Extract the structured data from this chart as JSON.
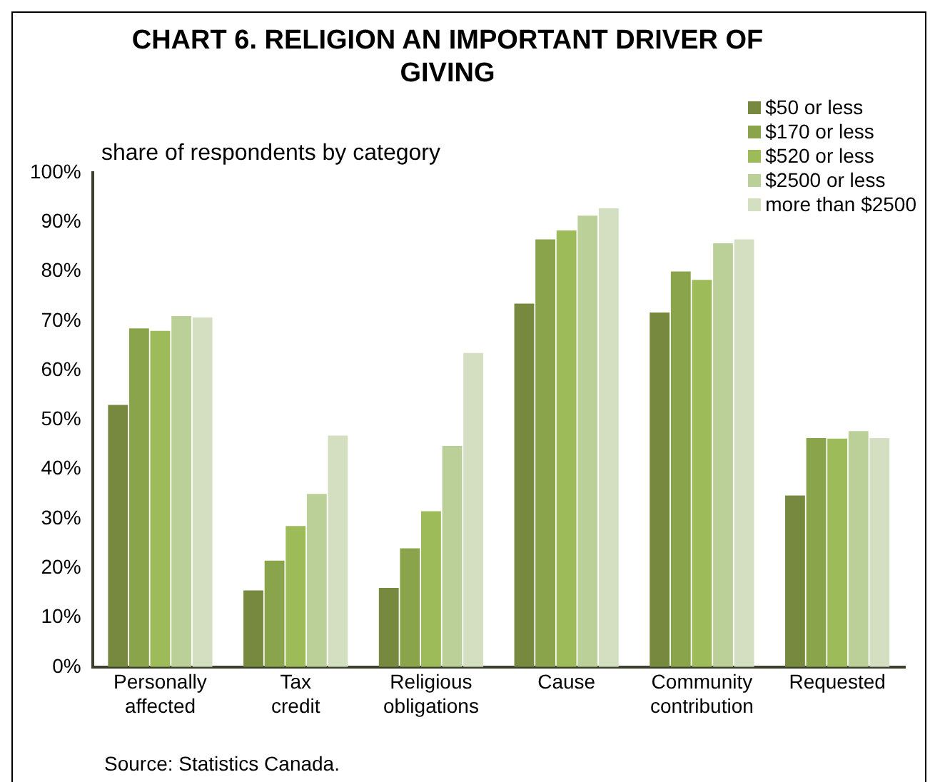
{
  "chart_data": {
    "type": "bar",
    "title": "CHART 6. RELIGION AN IMPORTANT DRIVER OF GIVING",
    "ylabel": "share of respondents by category",
    "categories": [
      "Personally affected",
      "Tax credit",
      "Religious obligations",
      "Cause",
      "Community contribution",
      "Requested"
    ],
    "series": [
      {
        "name": "$50 or less",
        "color": "#76893f",
        "values": [
          53,
          15.5,
          16,
          73.5,
          71.7,
          34.7
        ]
      },
      {
        "name": "$170 or less",
        "color": "#8aa44c",
        "values": [
          68.5,
          21.5,
          24,
          86.5,
          80,
          46.3
        ]
      },
      {
        "name": "$520 or less",
        "color": "#9dbb58",
        "values": [
          68,
          28.5,
          31.5,
          88.3,
          78.3,
          46.2
        ]
      },
      {
        "name": "$2500 or less",
        "color": "#bbd098",
        "values": [
          71,
          35,
          44.7,
          91.3,
          85.7,
          47.7
        ]
      },
      {
        "name": "more than $2500",
        "color": "#d3dfc0",
        "values": [
          70.7,
          46.8,
          63.5,
          92.8,
          86.5,
          46.3
        ]
      }
    ],
    "ylim": [
      0,
      100
    ],
    "yticks": [
      {
        "value": 0,
        "label": "0%"
      },
      {
        "value": 10,
        "label": "10%"
      },
      {
        "value": 20,
        "label": "20%"
      },
      {
        "value": 30,
        "label": "30%"
      },
      {
        "value": 40,
        "label": "40%"
      },
      {
        "value": 50,
        "label": "50%"
      },
      {
        "value": 60,
        "label": "60%"
      },
      {
        "value": 70,
        "label": "70%"
      },
      {
        "value": 80,
        "label": "80%"
      },
      {
        "value": 90,
        "label": "90%"
      },
      {
        "value": 100,
        "label": "100%"
      }
    ],
    "grid": false,
    "legend": "top right",
    "annotations": [
      "Source: Statistics Canada."
    ]
  }
}
